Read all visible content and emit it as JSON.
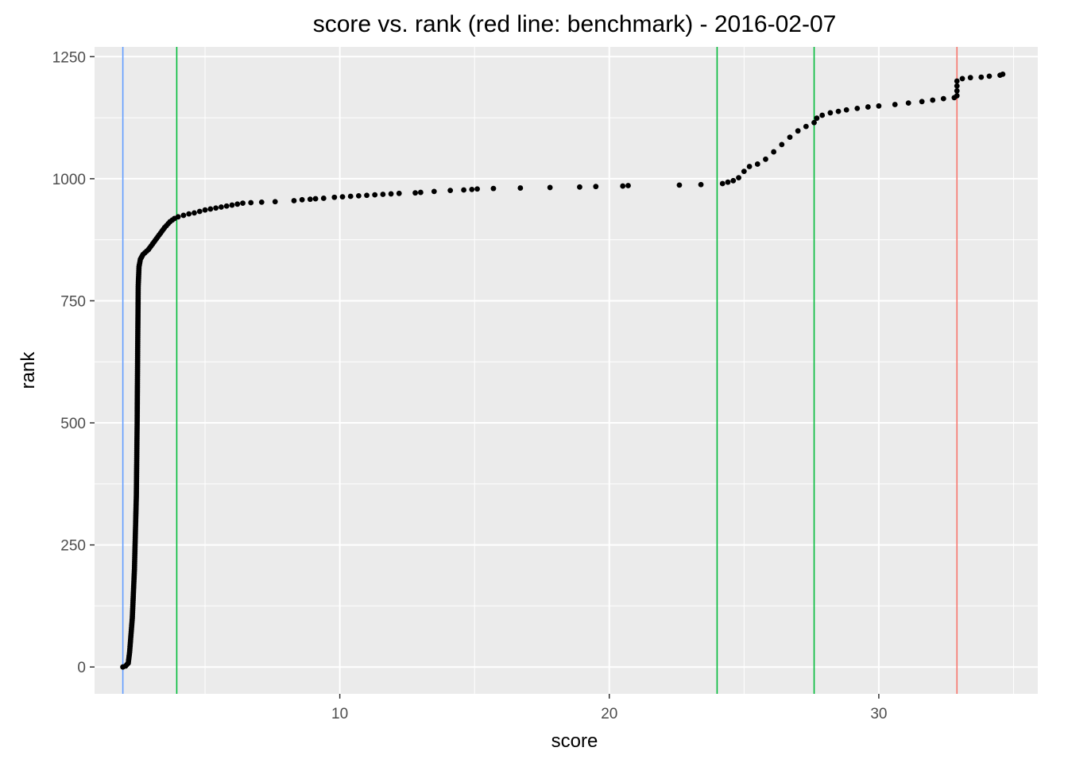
{
  "chart_data": {
    "type": "scatter",
    "title": "score vs. rank (red line: benchmark) - 2016-02-07",
    "xlabel": "score",
    "ylabel": "rank",
    "xlim": [
      0.9,
      35.9
    ],
    "ylim": [
      -55,
      1270
    ],
    "x_ticks": [
      10,
      20,
      30
    ],
    "y_ticks": [
      0,
      250,
      500,
      750,
      1000,
      1250
    ],
    "grid": true,
    "point_color": "#000000",
    "panel_background": "#ebebeb",
    "reference_lines": [
      {
        "x": 1.95,
        "color": "#619cff"
      },
      {
        "x": 3.95,
        "color": "#00ba38"
      },
      {
        "x": 24.0,
        "color": "#00ba38"
      },
      {
        "x": 27.6,
        "color": "#00ba38"
      },
      {
        "x": 32.9,
        "color": "#f8766d",
        "label": "benchmark"
      }
    ],
    "curve_anchors": {
      "x": [
        1.95,
        2.05,
        2.15,
        2.2,
        2.3,
        2.38,
        2.45,
        2.48,
        2.5,
        2.52,
        2.55,
        2.6,
        2.7,
        2.9,
        3.1,
        3.3,
        3.5,
        3.7,
        3.95
      ],
      "y": [
        0,
        2,
        8,
        30,
        100,
        200,
        350,
        500,
        650,
        780,
        820,
        835,
        845,
        855,
        870,
        885,
        900,
        912,
        922
      ]
    },
    "points": [
      [
        4.0,
        922
      ],
      [
        4.2,
        925
      ],
      [
        4.4,
        928
      ],
      [
        4.6,
        930
      ],
      [
        4.8,
        933
      ],
      [
        5.0,
        936
      ],
      [
        5.2,
        938
      ],
      [
        5.4,
        940
      ],
      [
        5.6,
        942
      ],
      [
        5.8,
        944
      ],
      [
        6.0,
        946
      ],
      [
        6.2,
        948
      ],
      [
        6.4,
        950
      ],
      [
        6.7,
        951
      ],
      [
        7.1,
        952
      ],
      [
        7.6,
        953
      ],
      [
        8.3,
        955
      ],
      [
        8.6,
        957
      ],
      [
        8.9,
        958
      ],
      [
        9.1,
        959
      ],
      [
        9.4,
        960
      ],
      [
        9.8,
        962
      ],
      [
        10.1,
        963
      ],
      [
        10.4,
        964
      ],
      [
        10.7,
        965
      ],
      [
        11.0,
        966
      ],
      [
        11.3,
        967
      ],
      [
        11.6,
        968
      ],
      [
        11.9,
        969
      ],
      [
        12.2,
        970
      ],
      [
        12.8,
        971
      ],
      [
        13.0,
        972
      ],
      [
        13.5,
        974
      ],
      [
        14.1,
        976
      ],
      [
        14.6,
        977
      ],
      [
        14.9,
        978
      ],
      [
        15.1,
        979
      ],
      [
        15.7,
        980
      ],
      [
        16.7,
        981
      ],
      [
        17.8,
        982
      ],
      [
        18.9,
        983
      ],
      [
        19.5,
        984
      ],
      [
        20.5,
        985
      ],
      [
        20.7,
        986
      ],
      [
        22.6,
        987
      ],
      [
        23.4,
        988
      ],
      [
        24.2,
        990
      ],
      [
        24.4,
        993
      ],
      [
        24.6,
        996
      ],
      [
        24.8,
        1002
      ],
      [
        25.0,
        1015
      ],
      [
        25.2,
        1025
      ],
      [
        25.5,
        1030
      ],
      [
        25.8,
        1040
      ],
      [
        26.1,
        1055
      ],
      [
        26.4,
        1070
      ],
      [
        26.7,
        1085
      ],
      [
        27.0,
        1098
      ],
      [
        27.3,
        1107
      ],
      [
        27.6,
        1115
      ],
      [
        27.7,
        1124
      ],
      [
        27.9,
        1130
      ],
      [
        28.2,
        1135
      ],
      [
        28.5,
        1138
      ],
      [
        28.8,
        1141
      ],
      [
        29.2,
        1144
      ],
      [
        29.6,
        1147
      ],
      [
        30.0,
        1149
      ],
      [
        30.6,
        1152
      ],
      [
        31.1,
        1155
      ],
      [
        31.6,
        1158
      ],
      [
        32.0,
        1161
      ],
      [
        32.4,
        1164
      ],
      [
        32.8,
        1166
      ],
      [
        32.9,
        1170
      ],
      [
        32.9,
        1180
      ],
      [
        32.9,
        1190
      ],
      [
        32.9,
        1200
      ],
      [
        33.1,
        1205
      ],
      [
        33.4,
        1207
      ],
      [
        33.8,
        1208
      ],
      [
        34.1,
        1210
      ],
      [
        34.5,
        1212
      ],
      [
        34.6,
        1214
      ]
    ]
  }
}
